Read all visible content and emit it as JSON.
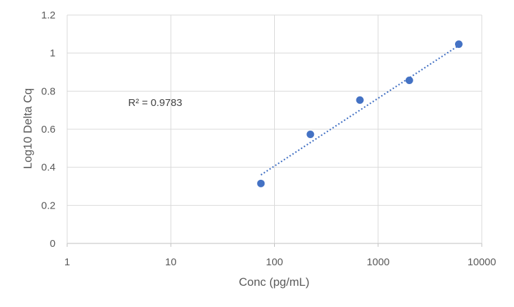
{
  "chart_data": {
    "type": "scatter",
    "xscale": "log",
    "xlim": [
      1,
      10000
    ],
    "ylim": [
      0,
      1.2
    ],
    "xticks": [
      "1",
      "10",
      "100",
      "1000",
      "10000"
    ],
    "yticks": [
      "0",
      "0.2",
      "0.4",
      "0.6",
      "0.8",
      "1",
      "1.2"
    ],
    "xlabel": "Conc (pg/mL)",
    "ylabel": "Log10 Delta Cq",
    "grid": true,
    "legend": "none",
    "annotation": "R² = 0.9783",
    "points": [
      {
        "x": 74,
        "y": 0.315
      },
      {
        "x": 222,
        "y": 0.573
      },
      {
        "x": 667,
        "y": 0.753
      },
      {
        "x": 2000,
        "y": 0.857
      },
      {
        "x": 6000,
        "y": 1.047
      }
    ],
    "trendline": {
      "type": "linear-log",
      "style": "dotted",
      "x": [
        74,
        6000
      ],
      "y": [
        0.36,
        1.04
      ]
    },
    "colors": {
      "marker": "#4472C4",
      "trendline": "#4472C4",
      "grid": "#D9D9D9"
    }
  }
}
